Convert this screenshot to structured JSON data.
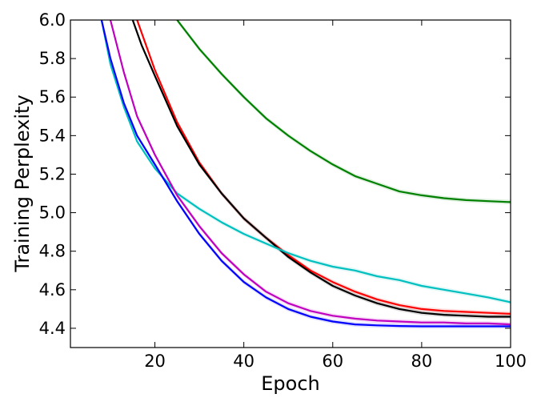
{
  "chart_data": {
    "type": "line",
    "title": "",
    "xlabel": "Epoch",
    "ylabel": "Training Perplexity",
    "xlim": [
      1,
      100
    ],
    "ylim": [
      4.3,
      6.0
    ],
    "xticks": [
      20,
      40,
      60,
      80,
      100
    ],
    "xtick_labels": [
      "20",
      "40",
      "60",
      "80",
      "100"
    ],
    "yticks": [
      4.4,
      4.6,
      4.8,
      5.0,
      5.2,
      5.4,
      5.6,
      5.8,
      6.0
    ],
    "ytick_labels": [
      "4.4",
      "4.6",
      "4.8",
      "5.0",
      "5.2",
      "5.4",
      "5.6",
      "5.8",
      "6.0"
    ],
    "grid": false,
    "legend": "none",
    "series": [
      {
        "color": "#008000",
        "x": [
          25,
          30,
          35,
          40,
          45,
          50,
          55,
          60,
          65,
          70,
          75,
          80,
          85,
          90,
          95,
          100
        ],
        "y": [
          6.0,
          5.85,
          5.72,
          5.6,
          5.49,
          5.4,
          5.32,
          5.25,
          5.19,
          5.15,
          5.11,
          5.09,
          5.075,
          5.065,
          5.06,
          5.055
        ]
      },
      {
        "color": "#ff0000",
        "x": [
          16,
          20,
          25,
          30,
          35,
          40,
          45,
          50,
          55,
          60,
          65,
          70,
          75,
          80,
          85,
          90,
          95,
          100
        ],
        "y": [
          6.0,
          5.74,
          5.47,
          5.26,
          5.1,
          4.97,
          4.87,
          4.78,
          4.7,
          4.64,
          4.59,
          4.55,
          4.52,
          4.5,
          4.49,
          4.485,
          4.48,
          4.475
        ]
      },
      {
        "color": "#000000",
        "x": [
          15,
          17,
          20,
          25,
          30,
          35,
          40,
          45,
          50,
          55,
          60,
          65,
          70,
          75,
          80,
          85,
          90,
          95,
          100
        ],
        "y": [
          6.0,
          5.87,
          5.71,
          5.45,
          5.25,
          5.1,
          4.97,
          4.87,
          4.77,
          4.69,
          4.62,
          4.57,
          4.53,
          4.5,
          4.48,
          4.47,
          4.465,
          4.46,
          4.46
        ]
      },
      {
        "color": "#00bfbf",
        "x": [
          8,
          10,
          13,
          16,
          20,
          25,
          30,
          35,
          40,
          45,
          50,
          55,
          60,
          65,
          70,
          75,
          80,
          85,
          90,
          95,
          100
        ],
        "y": [
          6.0,
          5.77,
          5.55,
          5.37,
          5.23,
          5.1,
          5.02,
          4.95,
          4.89,
          4.84,
          4.79,
          4.75,
          4.72,
          4.7,
          4.67,
          4.65,
          4.62,
          4.6,
          4.58,
          4.56,
          4.535
        ]
      },
      {
        "color": "#bf00bf",
        "x": [
          10,
          13,
          16,
          20,
          25,
          30,
          35,
          40,
          45,
          50,
          55,
          60,
          65,
          70,
          75,
          80,
          85,
          90,
          95,
          100
        ],
        "y": [
          6.0,
          5.73,
          5.5,
          5.3,
          5.09,
          4.93,
          4.79,
          4.68,
          4.59,
          4.53,
          4.49,
          4.465,
          4.45,
          4.44,
          4.435,
          4.43,
          4.43,
          4.425,
          4.425,
          4.42
        ]
      },
      {
        "color": "#0000ff",
        "x": [
          8,
          10,
          13,
          16,
          20,
          25,
          30,
          35,
          40,
          45,
          50,
          55,
          60,
          65,
          70,
          75,
          80,
          85,
          90,
          95,
          100
        ],
        "y": [
          6.0,
          5.8,
          5.57,
          5.4,
          5.25,
          5.06,
          4.89,
          4.75,
          4.64,
          4.56,
          4.5,
          4.46,
          4.435,
          4.42,
          4.415,
          4.412,
          4.41,
          4.41,
          4.41,
          4.41,
          4.41
        ]
      }
    ]
  }
}
